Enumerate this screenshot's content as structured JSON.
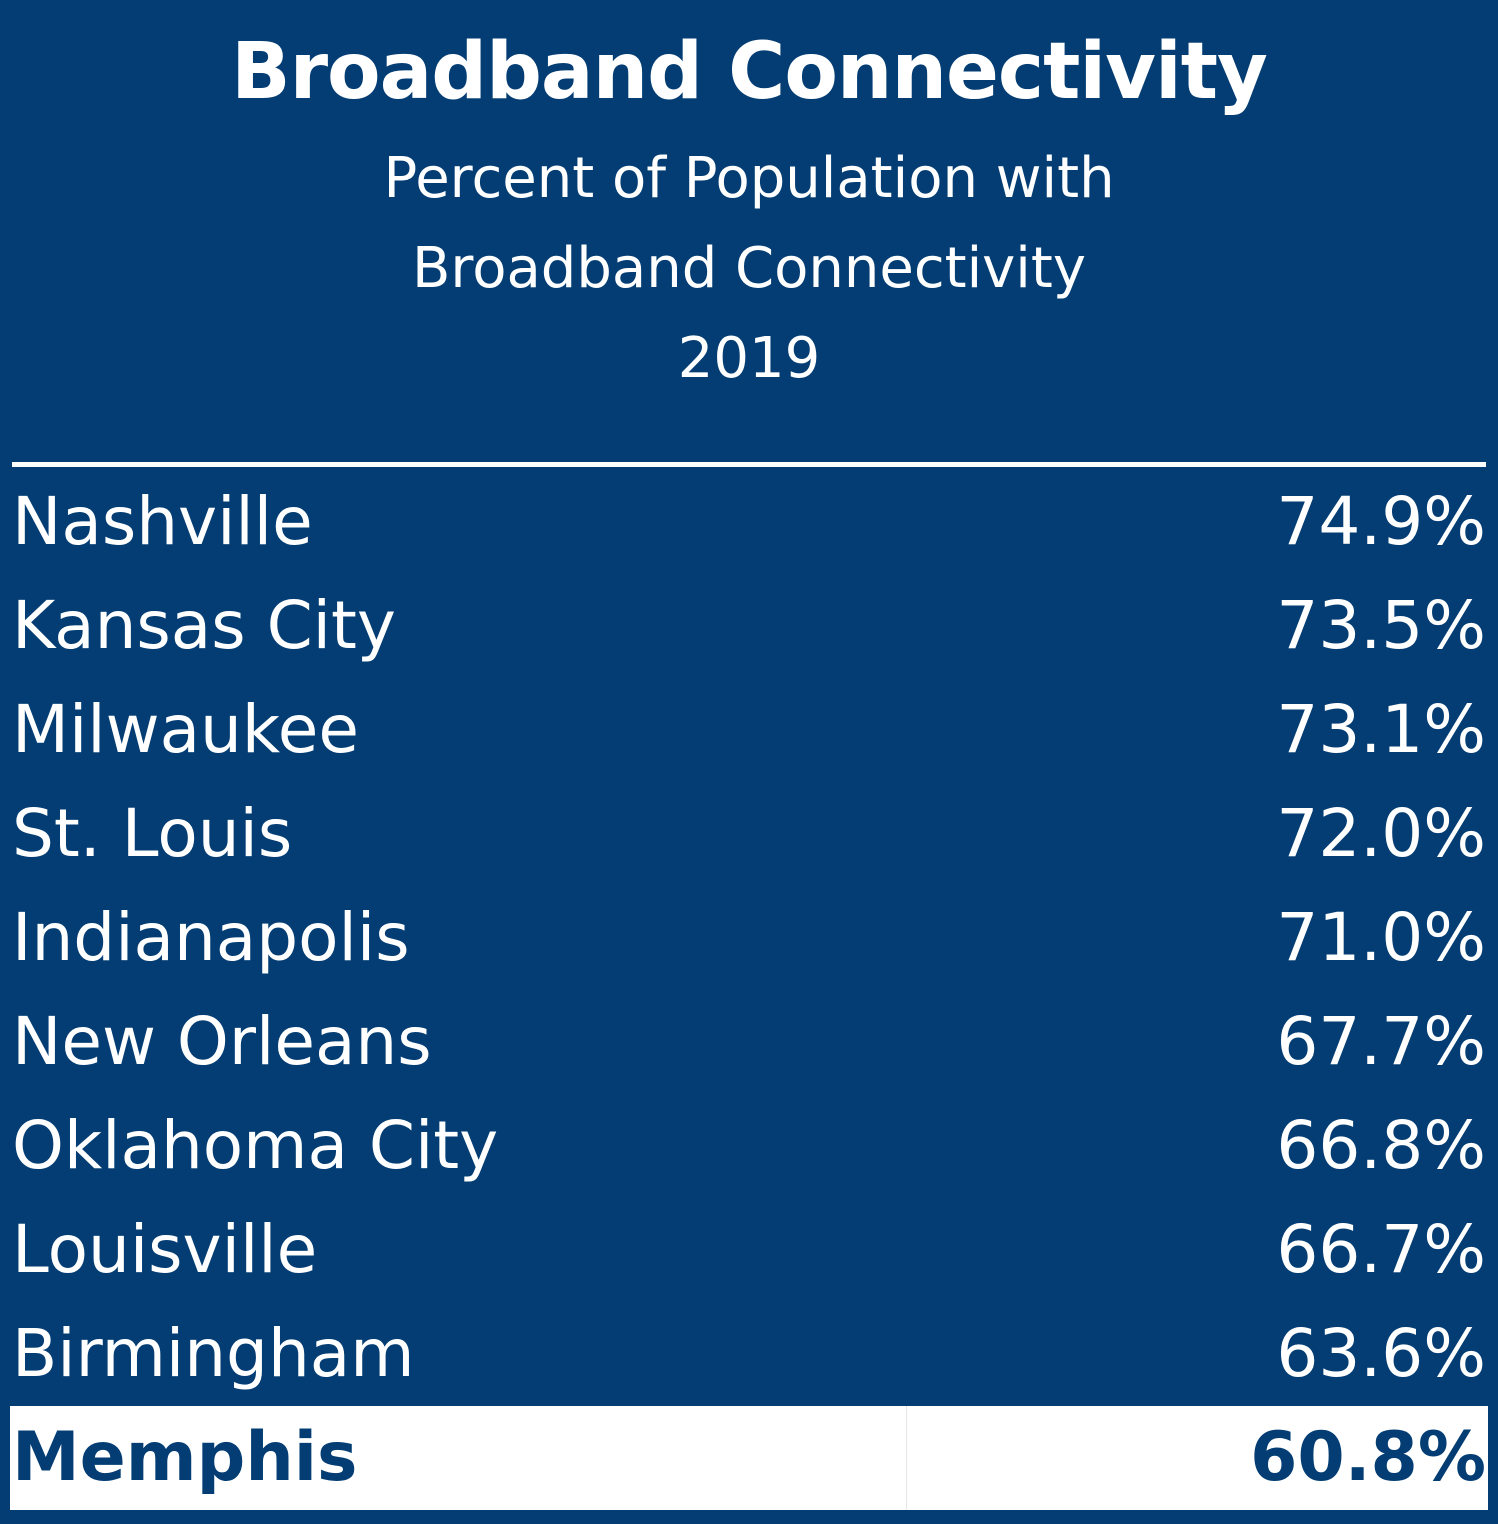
{
  "chart_data": {
    "type": "table",
    "title": "Broadband Connectivity",
    "subtitle_lines": [
      "Percent of Population with",
      "Broadband Connectivity",
      "2019"
    ],
    "unit": "%",
    "colors": {
      "background": "#033d73",
      "text": "#ffffff",
      "highlight_background": "#ffffff",
      "highlight_text": "#033d73"
    },
    "rows": [
      {
        "city": "Nashville",
        "value": 74.9,
        "label": "74.9%"
      },
      {
        "city": "Kansas City",
        "value": 73.5,
        "label": "73.5%"
      },
      {
        "city": "Milwaukee",
        "value": 73.1,
        "label": "73.1%"
      },
      {
        "city": "St. Louis",
        "value": 72.0,
        "label": "72.0%"
      },
      {
        "city": "Indianapolis",
        "value": 71.0,
        "label": "71.0%"
      },
      {
        "city": "New Orleans",
        "value": 67.7,
        "label": "67.7%"
      },
      {
        "city": "Oklahoma City",
        "value": 66.8,
        "label": "66.8%"
      },
      {
        "city": "Louisville",
        "value": 66.7,
        "label": "66.7%"
      },
      {
        "city": "Birmingham",
        "value": 63.6,
        "label": "63.6%"
      }
    ],
    "highlight": {
      "city": "Memphis",
      "value": 60.8,
      "label": "60.8%"
    }
  }
}
